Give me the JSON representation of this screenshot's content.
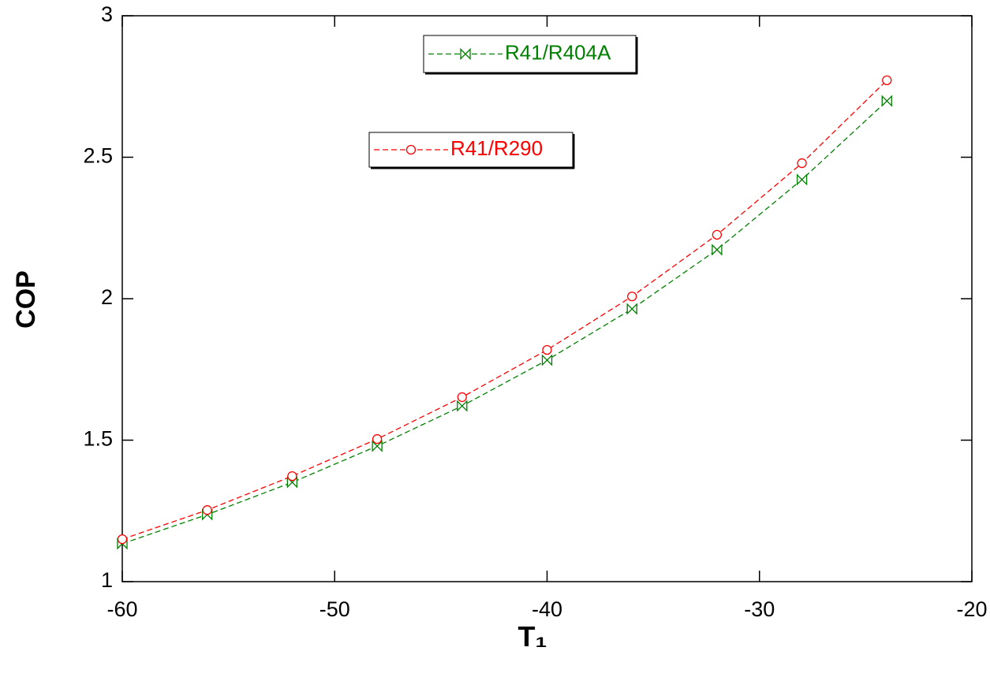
{
  "chart_data": {
    "type": "line",
    "xlabel": "T₁",
    "ylabel": "COP",
    "x": [
      -60,
      -56,
      -52,
      -48,
      -44,
      -40,
      -36,
      -32,
      -28,
      -24
    ],
    "series": [
      {
        "name": "R41/R404A",
        "color": "#008000",
        "marker": "bowtie",
        "values": [
          1.134,
          1.237,
          1.351,
          1.479,
          1.621,
          1.783,
          1.964,
          2.173,
          2.421,
          2.699
        ]
      },
      {
        "name": "R41/R290",
        "color": "#ff0000",
        "marker": "circle",
        "values": [
          1.15,
          1.253,
          1.373,
          1.504,
          1.652,
          1.819,
          2.008,
          2.226,
          2.479,
          2.772
        ]
      }
    ],
    "xlim": [
      -60,
      -20
    ],
    "xticks": [
      -60,
      -50,
      -40,
      -30,
      -20
    ],
    "ylim": [
      1,
      3
    ],
    "yticks": [
      1,
      1.5,
      2,
      2.5,
      3
    ]
  }
}
